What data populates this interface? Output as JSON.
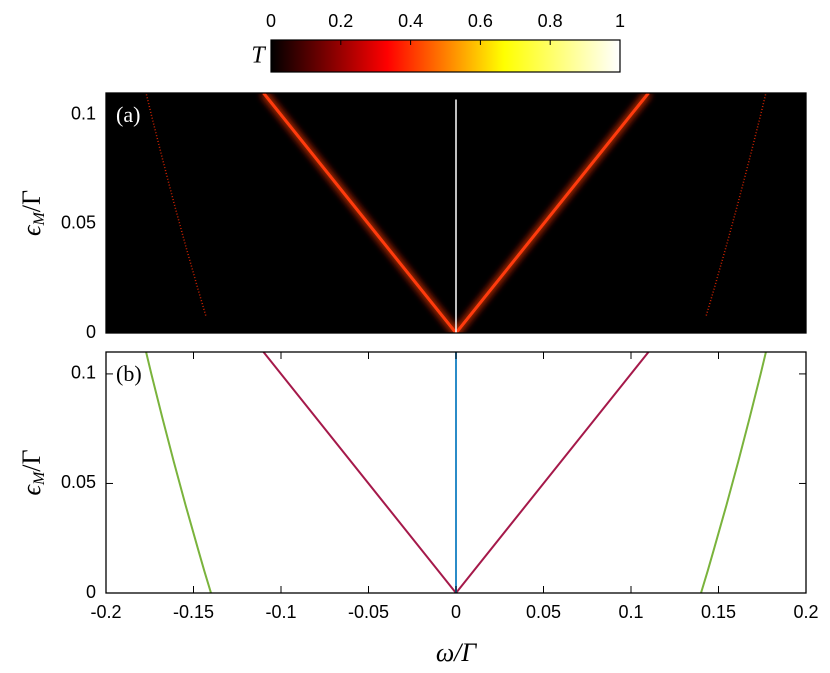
{
  "chart_data": [
    {
      "type": "heatmap",
      "label": "(a)",
      "ylabel": [
        "ϵ",
        "M",
        "/Γ"
      ],
      "xlim": [
        -0.2,
        0.2
      ],
      "ylim": [
        0,
        0.11
      ],
      "yticks": [
        0,
        0.05,
        0.1
      ],
      "colorbar": {
        "label": "T",
        "lim": [
          0,
          1
        ],
        "ticks": [
          0,
          0.2,
          0.4,
          0.6,
          0.8,
          1
        ],
        "colormap": [
          "#000000",
          "#ff0000",
          "#ffff00",
          "#ffffff"
        ]
      },
      "series": [
        {
          "color": "#ff3a10",
          "glow": true,
          "x": [
            -0.11,
            0,
            0.11
          ],
          "values": [
            0.11,
            0,
            0.11
          ]
        },
        {
          "color": "#ffffff",
          "glow": false,
          "x": [
            0,
            0
          ],
          "values": [
            0,
            0.107
          ]
        },
        {
          "color": "#ff2a00",
          "dotted": true,
          "x": [
            -0.143,
            -0.1474,
            -0.1545,
            -0.1613,
            -0.1678,
            -0.1741,
            -0.1771
          ],
          "values": [
            0.008,
            0.02,
            0.04,
            0.06,
            0.08,
            0.1,
            0.11
          ]
        },
        {
          "color": "#ff2a00",
          "dotted": true,
          "x": [
            0.143,
            0.1474,
            0.1545,
            0.1613,
            0.1678,
            0.1741,
            0.1771
          ],
          "values": [
            0.008,
            0.02,
            0.04,
            0.06,
            0.08,
            0.1,
            0.11
          ]
        }
      ]
    },
    {
      "type": "line",
      "label": "(b)",
      "ylabel": [
        "ϵ",
        "M",
        "/Γ"
      ],
      "xlabel": "ω/Γ",
      "xlim": [
        -0.2,
        0.2
      ],
      "ylim": [
        0,
        0.11
      ],
      "xticks": [
        -0.2,
        -0.15,
        -0.1,
        -0.05,
        0,
        0.05,
        0.1,
        0.15,
        0.2
      ],
      "yticks": [
        0,
        0.05,
        0.1
      ],
      "series": [
        {
          "color": "#a5194a",
          "x": [
            -0.11,
            0,
            0.11
          ],
          "values": [
            0.11,
            0,
            0.11
          ]
        },
        {
          "color": "#2b8cc8",
          "x": [
            0,
            0
          ],
          "values": [
            0,
            0.11
          ]
        },
        {
          "color": "#7ab33c",
          "x": [
            -0.14,
            -0.1438,
            -0.1474,
            -0.1545,
            -0.1613,
            -0.1678,
            -0.1741,
            -0.1771
          ],
          "values": [
            0,
            0.01,
            0.02,
            0.04,
            0.06,
            0.08,
            0.1,
            0.11
          ]
        },
        {
          "color": "#7ab33c",
          "x": [
            0.14,
            0.1438,
            0.1474,
            0.1545,
            0.1613,
            0.1678,
            0.1741,
            0.1771
          ],
          "values": [
            0,
            0.01,
            0.02,
            0.04,
            0.06,
            0.08,
            0.1,
            0.11
          ]
        }
      ]
    }
  ]
}
